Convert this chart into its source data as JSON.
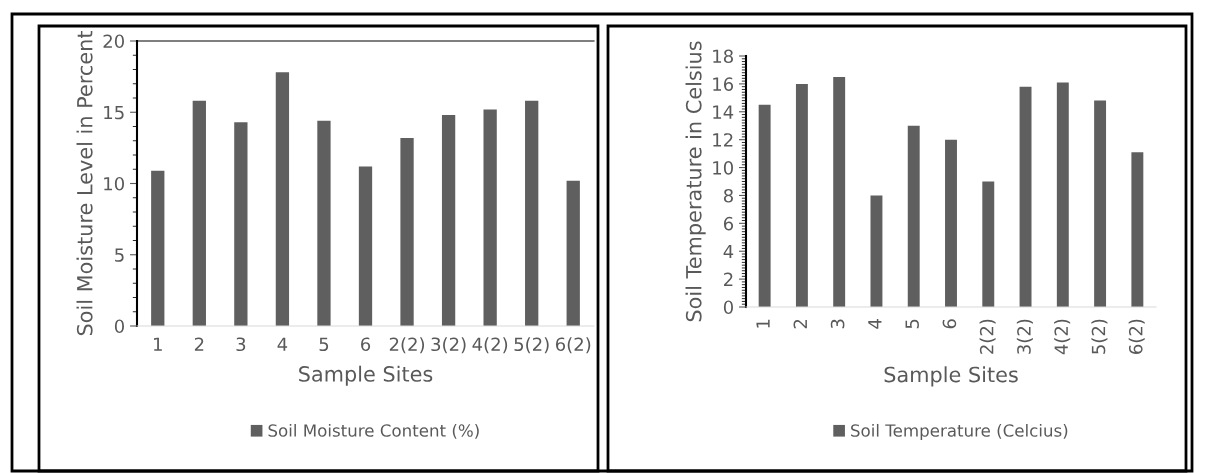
{
  "chart_data": [
    {
      "type": "bar",
      "xlabel": "Sample Sites",
      "ylabel": "Soil Moisture Level in Percent",
      "categories": [
        "1",
        "2",
        "3",
        "4",
        "5",
        "6",
        "2(2)",
        "3(2)",
        "4(2)",
        "5(2)",
        "6(2)"
      ],
      "series": [
        {
          "name": "Soil Moisture Content (%)",
          "color": "#5f5f5f",
          "values": [
            10.9,
            15.8,
            14.3,
            17.8,
            14.4,
            11.2,
            13.2,
            14.8,
            15.2,
            15.8,
            10.2
          ]
        }
      ],
      "ylim": [
        0,
        20
      ],
      "yticks": [
        0,
        5,
        10,
        15,
        20
      ],
      "legend": "bottom",
      "grid": false
    },
    {
      "type": "bar",
      "xlabel": "Sample Sites",
      "ylabel": "Soil Temperature in Celsius",
      "categories": [
        "1",
        "2",
        "3",
        "4",
        "5",
        "6",
        "2(2)",
        "3(2)",
        "4(2)",
        "5(2)",
        "6(2)"
      ],
      "series": [
        {
          "name": "Soil Temperature (Celcius)",
          "color": "#5f5f5f",
          "values": [
            14.5,
            16.0,
            16.5,
            8.0,
            13.0,
            12.0,
            9.0,
            15.8,
            16.1,
            14.8,
            11.1
          ]
        }
      ],
      "ylim": [
        0,
        18
      ],
      "yticks": [
        0,
        2,
        4,
        6,
        8,
        10,
        12,
        14,
        16,
        18
      ],
      "legend": "bottom",
      "grid": false
    }
  ]
}
